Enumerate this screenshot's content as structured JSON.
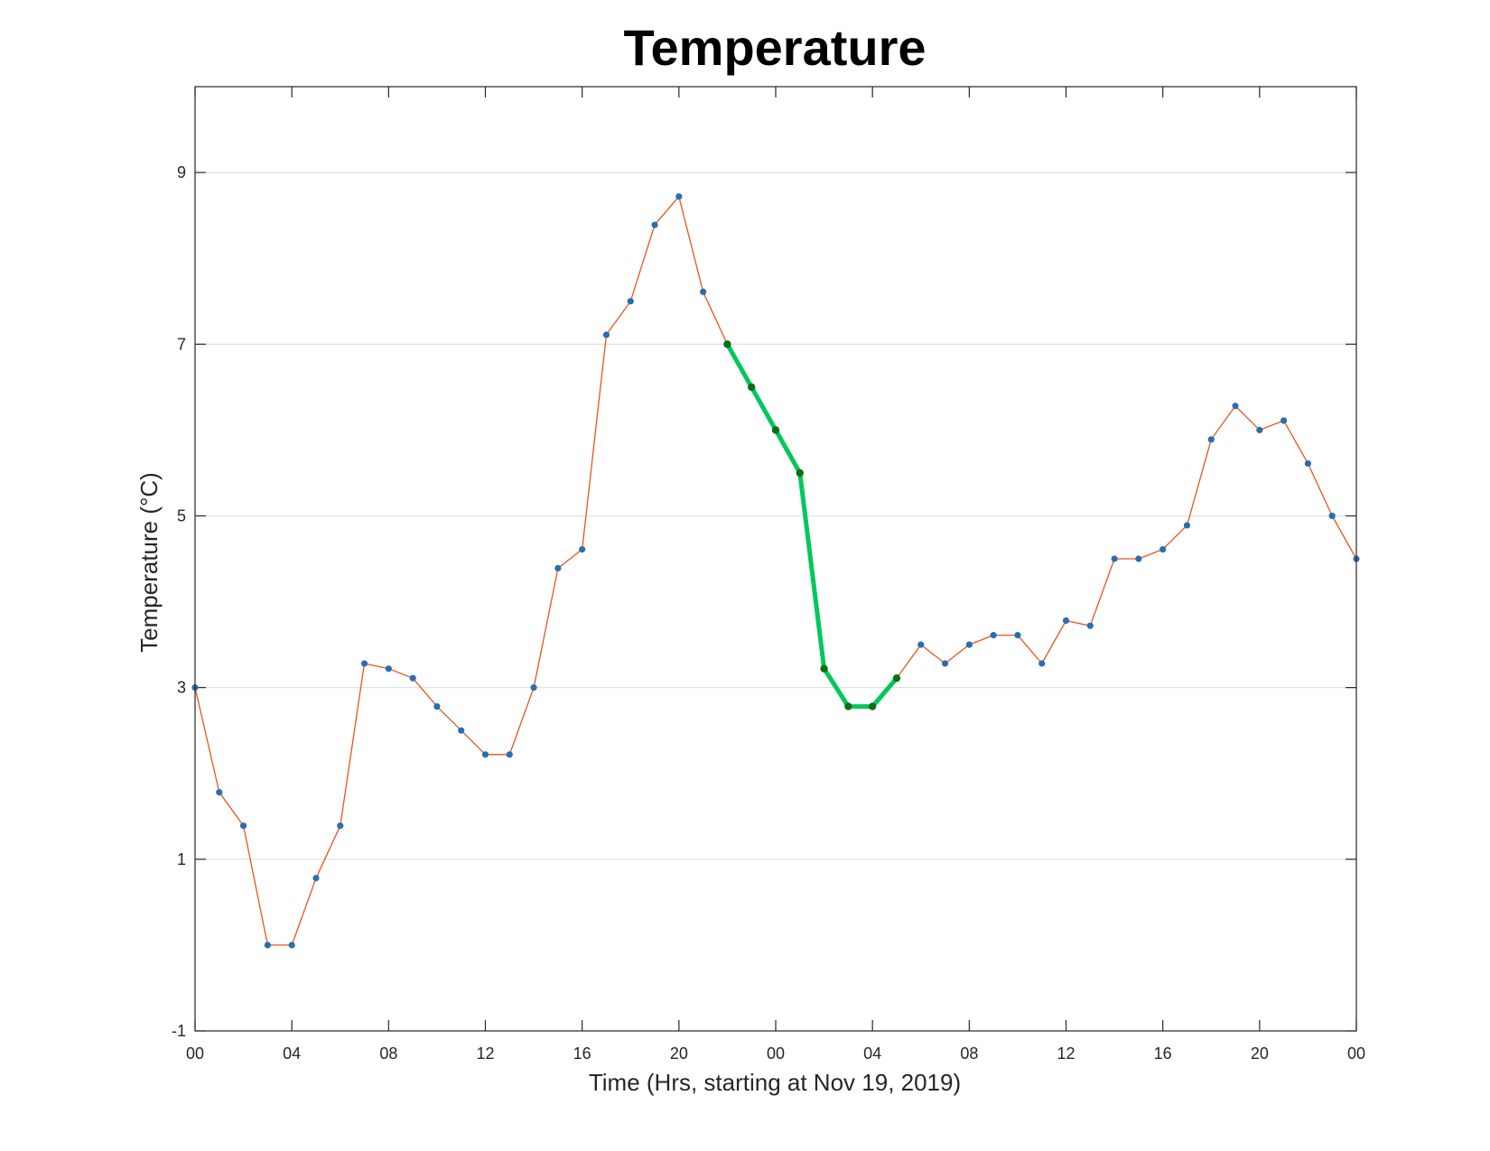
{
  "chart_data": {
    "type": "line",
    "title": "Temperature",
    "xlabel": "Time (Hrs, starting at Nov 19, 2019)",
    "ylabel": "Temperature (°C)",
    "xlim": [
      "2019-11-19 00:00",
      "2019-11-21 00:00"
    ],
    "ylim": [
      -1,
      10
    ],
    "x_tick_labels": [
      "00",
      "04",
      "08",
      "12",
      "16",
      "20",
      "00",
      "04",
      "08",
      "12",
      "16",
      "20",
      "00"
    ],
    "x_tick_values": [
      "2019-11-19 00:00",
      "2019-11-19 04:00",
      "2019-11-19 08:00",
      "2019-11-19 12:00",
      "2019-11-19 16:00",
      "2019-11-19 20:00",
      "2019-11-20 00:00",
      "2019-11-20 04:00",
      "2019-11-20 08:00",
      "2019-11-20 12:00",
      "2019-11-20 16:00",
      "2019-11-20 20:00",
      "2019-11-21 00:00"
    ],
    "y_ticks": [
      -1,
      1,
      3,
      5,
      7,
      9
    ],
    "grid": "horizontal",
    "series": [
      {
        "color": "#e8541f",
        "marker_color": "#2a6fad",
        "x": [
          "2019-11-19 00:00",
          "2019-11-19 01:00",
          "2019-11-19 02:00",
          "2019-11-19 03:00",
          "2019-11-19 04:00",
          "2019-11-19 05:00",
          "2019-11-19 06:00",
          "2019-11-19 07:00",
          "2019-11-19 08:00",
          "2019-11-19 09:00",
          "2019-11-19 10:00",
          "2019-11-19 11:00",
          "2019-11-19 12:00",
          "2019-11-19 13:00",
          "2019-11-19 14:00",
          "2019-11-19 15:00",
          "2019-11-19 16:00",
          "2019-11-19 17:00",
          "2019-11-19 18:00",
          "2019-11-19 19:00",
          "2019-11-19 20:00",
          "2019-11-19 21:00",
          "2019-11-19 22:00",
          "2019-11-19 23:00",
          "2019-11-20 00:00",
          "2019-11-20 01:00",
          "2019-11-20 02:00",
          "2019-11-20 03:00",
          "2019-11-20 04:00",
          "2019-11-20 05:00",
          "2019-11-20 06:00",
          "2019-11-20 07:00",
          "2019-11-20 08:00",
          "2019-11-20 09:00",
          "2019-11-20 10:00",
          "2019-11-20 11:00",
          "2019-11-20 12:00",
          "2019-11-20 13:00",
          "2019-11-20 14:00",
          "2019-11-20 15:00",
          "2019-11-20 16:00",
          "2019-11-20 17:00",
          "2019-11-20 18:00",
          "2019-11-20 19:00",
          "2019-11-20 20:00",
          "2019-11-20 21:00",
          "2019-11-20 22:00",
          "2019-11-20 23:00",
          "2019-11-21 00:00"
        ],
        "y": [
          3.0,
          1.78,
          1.39,
          0.0,
          0.0,
          0.78,
          1.39,
          3.28,
          3.22,
          3.11,
          2.78,
          2.5,
          2.22,
          2.22,
          3.0,
          4.39,
          4.61,
          7.11,
          7.5,
          8.39,
          8.72,
          7.61,
          7.0,
          6.5,
          6.0,
          5.5,
          3.22,
          2.78,
          2.78,
          3.11,
          3.5,
          3.28,
          3.5,
          3.61,
          3.61,
          3.28,
          3.78,
          3.72,
          4.5,
          4.5,
          4.61,
          4.89,
          5.89,
          6.28,
          6.0,
          6.11,
          5.61,
          5.0,
          4.5
        ]
      },
      {
        "color": "#00c85a",
        "marker_color": "#0b6e14",
        "x": [
          "2019-11-19 22:00",
          "2019-11-19 23:00",
          "2019-11-20 00:00",
          "2019-11-20 01:00",
          "2019-11-20 02:00",
          "2019-11-20 03:00",
          "2019-11-20 04:00",
          "2019-11-20 05:00"
        ],
        "y": [
          7.0,
          6.5,
          6.0,
          5.5,
          3.22,
          2.78,
          2.78,
          3.11
        ]
      }
    ]
  }
}
